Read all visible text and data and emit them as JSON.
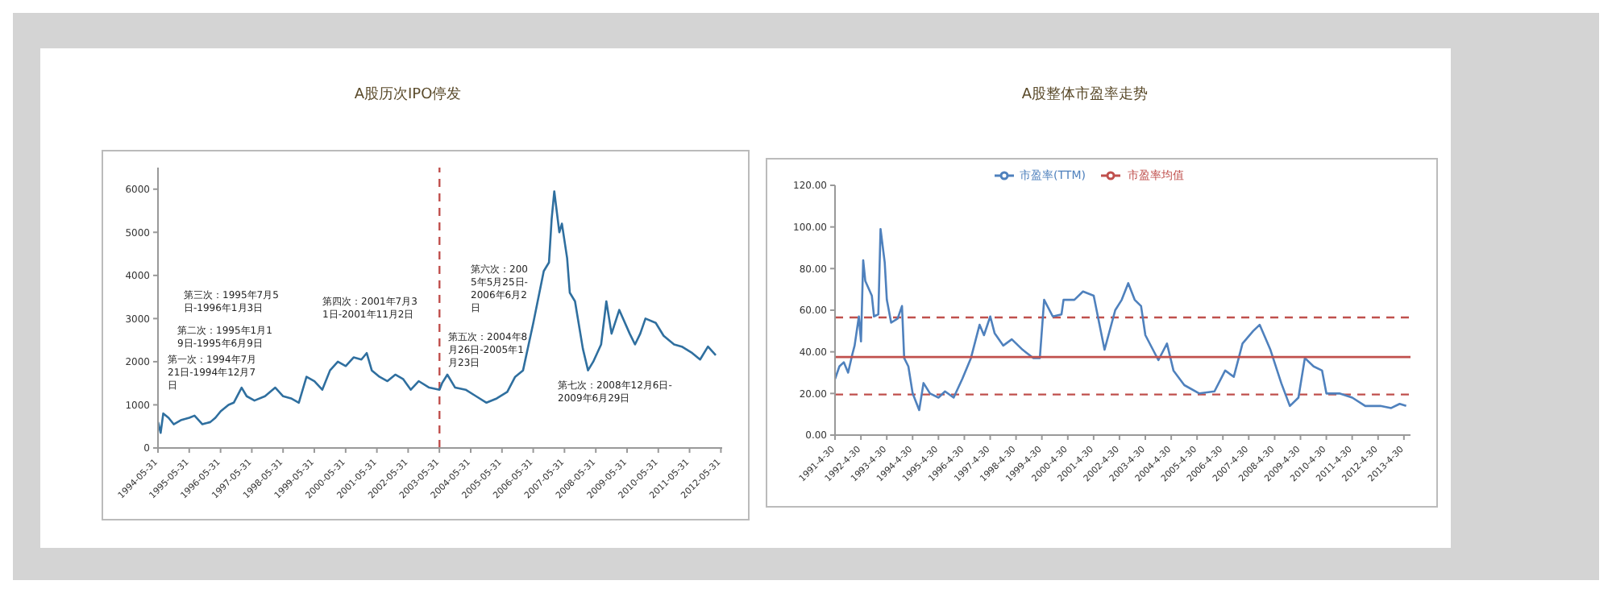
{
  "chart_data": [
    {
      "type": "line",
      "title": "A股历次IPO停发",
      "ylim": [
        0,
        6500
      ],
      "yticks": [
        0,
        1000,
        2000,
        3000,
        4000,
        5000,
        6000
      ],
      "xlim": [
        "1994-05-31",
        "2012-06-15"
      ],
      "xticks": [
        {
          "value": "1994-05-31",
          "label": "1994-05-31"
        },
        {
          "value": "1995-05-31",
          "label": "1995-05-31"
        },
        {
          "value": "1996-05-31",
          "label": "1996-05-31"
        },
        {
          "value": "1997-05-31",
          "label": "1997-05-31"
        },
        {
          "value": "1998-05-31",
          "label": "1998-05-31"
        },
        {
          "value": "1999-05-31",
          "label": "1999-05-31"
        },
        {
          "value": "2000-05-31",
          "label": "2000-05-31"
        },
        {
          "value": "2001-05-31",
          "label": "2001-05-31"
        },
        {
          "value": "2002-05-31",
          "label": "2002-05-31"
        },
        {
          "value": "2003-05-31",
          "label": "2003-05-31"
        },
        {
          "value": "2004-05-31",
          "label": "2004-05-31"
        },
        {
          "value": "2005-05-31",
          "label": "2005-05-31"
        },
        {
          "value": "2006-05-31",
          "label": "2006-05-31"
        },
        {
          "value": "2007-05-31",
          "label": "2007-05-31"
        },
        {
          "value": "2008-05-31",
          "label": "2008-05-31"
        },
        {
          "value": "2009-05-31",
          "label": "2009-05-31"
        },
        {
          "value": "2010-05-31",
          "label": "2010-05-31"
        },
        {
          "value": "2011-05-31",
          "label": "2011-05-31"
        },
        {
          "value": "2012-05-31",
          "label": "2012-05-31"
        }
      ],
      "series": [
        {
          "color": "#2f6f9f",
          "x": [
            "1994-06",
            "1994-07",
            "1994-08",
            "1994-10",
            "1994-12",
            "1995-03",
            "1995-06",
            "1995-08",
            "1995-11",
            "1996-02",
            "1996-04",
            "1996-06",
            "1996-09",
            "1996-11",
            "1997-02",
            "1997-04",
            "1997-07",
            "1997-11",
            "1998-03",
            "1998-06",
            "1998-09",
            "1998-12",
            "1999-03",
            "1999-06",
            "1999-09",
            "1999-12",
            "2000-03",
            "2000-06",
            "2000-09",
            "2000-12",
            "2001-02",
            "2001-04",
            "2001-07",
            "2001-10",
            "2002-01",
            "2002-04",
            "2002-07",
            "2002-10",
            "2003-02",
            "2003-06",
            "2003-07",
            "2003-09",
            "2003-12",
            "2004-04",
            "2004-08",
            "2004-12",
            "2005-04",
            "2005-08",
            "2005-11",
            "2006-02",
            "2006-06",
            "2006-10",
            "2006-12",
            "2007-01",
            "2007-02",
            "2007-04",
            "2007-05",
            "2007-07",
            "2007-08",
            "2007-10",
            "2008-01",
            "2008-03",
            "2008-05",
            "2008-08",
            "2008-10",
            "2008-12",
            "2009-03",
            "2009-07",
            "2009-09",
            "2009-11",
            "2010-01",
            "2010-05",
            "2010-08",
            "2010-12",
            "2011-03",
            "2011-07",
            "2011-10",
            "2012-01",
            "2012-04"
          ],
          "values": [
            600,
            350,
            800,
            700,
            550,
            650,
            700,
            750,
            550,
            600,
            700,
            850,
            1000,
            1050,
            1400,
            1200,
            1100,
            1200,
            1400,
            1200,
            1150,
            1050,
            1650,
            1550,
            1350,
            1800,
            2000,
            1900,
            2100,
            2050,
            2200,
            1800,
            1650,
            1550,
            1700,
            1600,
            1350,
            1550,
            1400,
            1350,
            1500,
            1700,
            1400,
            1350,
            1200,
            1050,
            1150,
            1300,
            1650,
            1800,
            2900,
            4100,
            4300,
            5300,
            5950,
            5000,
            5200,
            4400,
            3600,
            3400,
            2300,
            1800,
            2000,
            2400,
            3400,
            2650,
            3200,
            2650,
            2400,
            2650,
            3000,
            2900,
            2600,
            2400,
            2350,
            2200,
            2050,
            2350,
            2150
          ]
        }
      ],
      "ref_lines": [
        {
          "axis": "x",
          "value": "2003-06",
          "color": "#c0504d",
          "line_style": "dashed"
        }
      ],
      "annotations": [
        "第一次：1994年7月21日-1994年12月7日",
        "第二次：1995年1月19日-1995年6月9日",
        "第三次：1995年7月5日-1996年1月3日",
        "第四次：2001年7月31日-2001年11月2日",
        "第五次：2004年8月26日-2005年1月23日",
        "第六次：2005年5月25日-2006年6月2日",
        "第七次：2008年12月6日-2009年6月29日"
      ],
      "legend": false,
      "marker": "none",
      "line_style": "solid"
    },
    {
      "type": "line",
      "title": "A股整体市盈率走势",
      "ylim": [
        0,
        120
      ],
      "yticks": [
        {
          "value": 0,
          "label": "0.00"
        },
        {
          "value": 20,
          "label": "20.00"
        },
        {
          "value": 40,
          "label": "40.00"
        },
        {
          "value": 60,
          "label": "60.00"
        },
        {
          "value": 80,
          "label": "80.00"
        },
        {
          "value": 100,
          "label": "100.00"
        },
        {
          "value": 120,
          "label": "120.00"
        }
      ],
      "xlim": [
        "1991-04-30",
        "2013-08"
      ],
      "xticks": [
        {
          "value": "1991-04-30",
          "label": "1991-4-30"
        },
        {
          "value": "1992-04-30",
          "label": "1992-4-30"
        },
        {
          "value": "1993-04-30",
          "label": "1993-4-30"
        },
        {
          "value": "1994-04-30",
          "label": "1994-4-30"
        },
        {
          "value": "1995-04-30",
          "label": "1995-4-30"
        },
        {
          "value": "1996-04-30",
          "label": "1996-4-30"
        },
        {
          "value": "1997-04-30",
          "label": "1997-4-30"
        },
        {
          "value": "1998-04-30",
          "label": "1998-4-30"
        },
        {
          "value": "1999-04-30",
          "label": "1999-4-30"
        },
        {
          "value": "2000-04-30",
          "label": "2000-4-30"
        },
        {
          "value": "2001-04-30",
          "label": "2001-4-30"
        },
        {
          "value": "2002-04-30",
          "label": "2002-4-30"
        },
        {
          "value": "2003-04-30",
          "label": "2003-4-30"
        },
        {
          "value": "2004-04-30",
          "label": "2004-4-30"
        },
        {
          "value": "2005-04-30",
          "label": "2005-4-30"
        },
        {
          "value": "2006-04-30",
          "label": "2006-4-30"
        },
        {
          "value": "2007-04-30",
          "label": "2007-4-30"
        },
        {
          "value": "2008-04-30",
          "label": "2008-4-30"
        },
        {
          "value": "2009-04-30",
          "label": "2009-4-30"
        },
        {
          "value": "2010-04-30",
          "label": "2010-4-30"
        },
        {
          "value": "2011-04-30",
          "label": "2011-4-30"
        },
        {
          "value": "2012-04-30",
          "label": "2012-4-30"
        },
        {
          "value": "2013-04-30",
          "label": "2013-4-30"
        }
      ],
      "series": [
        {
          "name": "市盈率(TTM)",
          "color": "#4f81bd",
          "x": [
            "1991-05",
            "1991-07",
            "1991-09",
            "1991-11",
            "1992-01",
            "1992-02",
            "1992-04",
            "1992-05",
            "1992-06",
            "1992-07",
            "1992-10",
            "1992-11",
            "1993-01",
            "1993-02",
            "1993-04",
            "1993-05",
            "1993-07",
            "1993-10",
            "1993-12",
            "1994-01",
            "1994-03",
            "1994-05",
            "1994-08",
            "1994-10",
            "1995-01",
            "1995-05",
            "1995-08",
            "1995-12",
            "1996-04",
            "1996-08",
            "1996-12",
            "1997-02",
            "1997-05",
            "1997-07",
            "1997-11",
            "1998-03",
            "1998-08",
            "1999-01",
            "1999-04",
            "1999-06",
            "1999-10",
            "2000-02",
            "2000-03",
            "2000-08",
            "2000-12",
            "2001-05",
            "2001-10",
            "2002-03",
            "2002-06",
            "2002-09",
            "2002-12",
            "2003-03",
            "2003-05",
            "2003-11",
            "2004-03",
            "2004-06",
            "2004-11",
            "2005-06",
            "2006-01",
            "2006-06",
            "2006-10",
            "2007-02",
            "2007-07",
            "2007-10",
            "2008-03",
            "2008-08",
            "2008-12",
            "2009-04",
            "2009-07",
            "2009-11",
            "2010-03",
            "2010-05",
            "2010-11",
            "2011-05",
            "2011-11",
            "2012-06",
            "2012-11",
            "2013-03",
            "2013-06"
          ],
          "values": [
            27,
            33,
            35,
            30,
            39,
            43,
            57,
            45,
            84,
            74,
            67,
            57,
            58,
            99,
            83,
            65,
            54,
            56,
            62,
            37,
            33,
            20,
            12,
            25,
            20,
            18,
            21,
            18,
            27,
            37,
            53,
            48,
            57,
            49,
            43,
            46,
            41,
            37,
            37,
            65,
            57,
            58,
            65,
            65,
            69,
            67,
            41,
            60,
            65,
            73,
            65,
            62,
            48,
            36,
            44,
            31,
            24,
            20,
            21,
            31,
            28,
            44,
            50,
            53,
            41,
            25,
            14,
            18,
            37,
            33,
            31,
            20,
            20,
            18,
            14,
            14,
            13,
            15,
            14
          ]
        },
        {
          "name": "市盈率均值",
          "color": "#c0504d",
          "x": [
            "1991-04-30",
            "2013-08"
          ],
          "values": [
            37.5,
            37.5
          ]
        }
      ],
      "ref_lines": [
        {
          "axis": "y",
          "value": 56.5,
          "color": "#c0504d",
          "line_style": "dashed"
        },
        {
          "axis": "y",
          "value": 19.5,
          "color": "#c0504d",
          "line_style": "dashed"
        }
      ],
      "legend": "top",
      "marker": "none",
      "line_style": "solid"
    }
  ]
}
